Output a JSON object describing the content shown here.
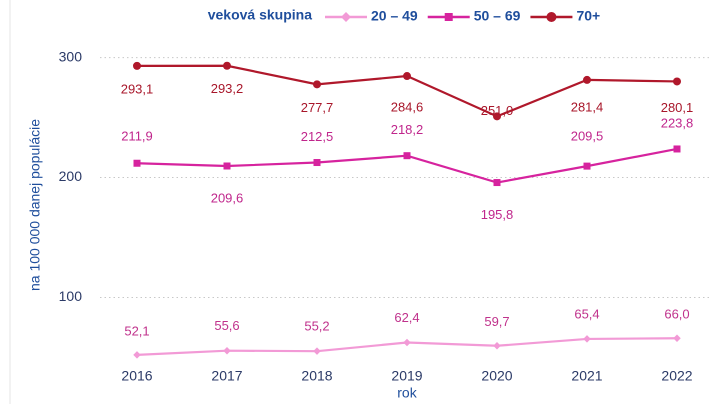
{
  "chart_data": {
    "type": "line",
    "x_label": "rok",
    "y_label": "na 100 000 danej populácie",
    "legend_title": "veková skupina",
    "categories": [
      "2016",
      "2017",
      "2018",
      "2019",
      "2020",
      "2021",
      "2022"
    ],
    "series": [
      {
        "name": "20 – 49",
        "color": "#f29ad6",
        "label_color": "#c0328c",
        "marker": "diamond",
        "values": [
          52.1,
          55.6,
          55.2,
          62.4,
          59.7,
          65.4,
          66.0
        ],
        "value_labels": [
          "52,1",
          "55,6",
          "55,2",
          "62,4",
          "59,7",
          "65,4",
          "66,0"
        ]
      },
      {
        "name": "50 – 69",
        "color": "#d6239e",
        "label_color": "#c0268c",
        "marker": "square",
        "values": [
          211.9,
          209.6,
          212.5,
          218.2,
          195.8,
          209.5,
          223.8
        ],
        "value_labels": [
          "211,9",
          "209,6",
          "212,5",
          "218,2",
          "195,8",
          "209,5",
          "223,8"
        ]
      },
      {
        "name": "70+",
        "color": "#b0182b",
        "label_color": "#a8162a",
        "marker": "circle",
        "values": [
          293.1,
          293.2,
          277.7,
          284.6,
          251.0,
          281.4,
          280.1
        ],
        "value_labels": [
          "293,1",
          "293,2",
          "277,7",
          "284,6",
          "251,0",
          "281,4",
          "280,1"
        ]
      }
    ],
    "ylim": [
      42,
      318
    ],
    "yticks": [
      100,
      200,
      300
    ],
    "grid": true,
    "legend": "top"
  }
}
